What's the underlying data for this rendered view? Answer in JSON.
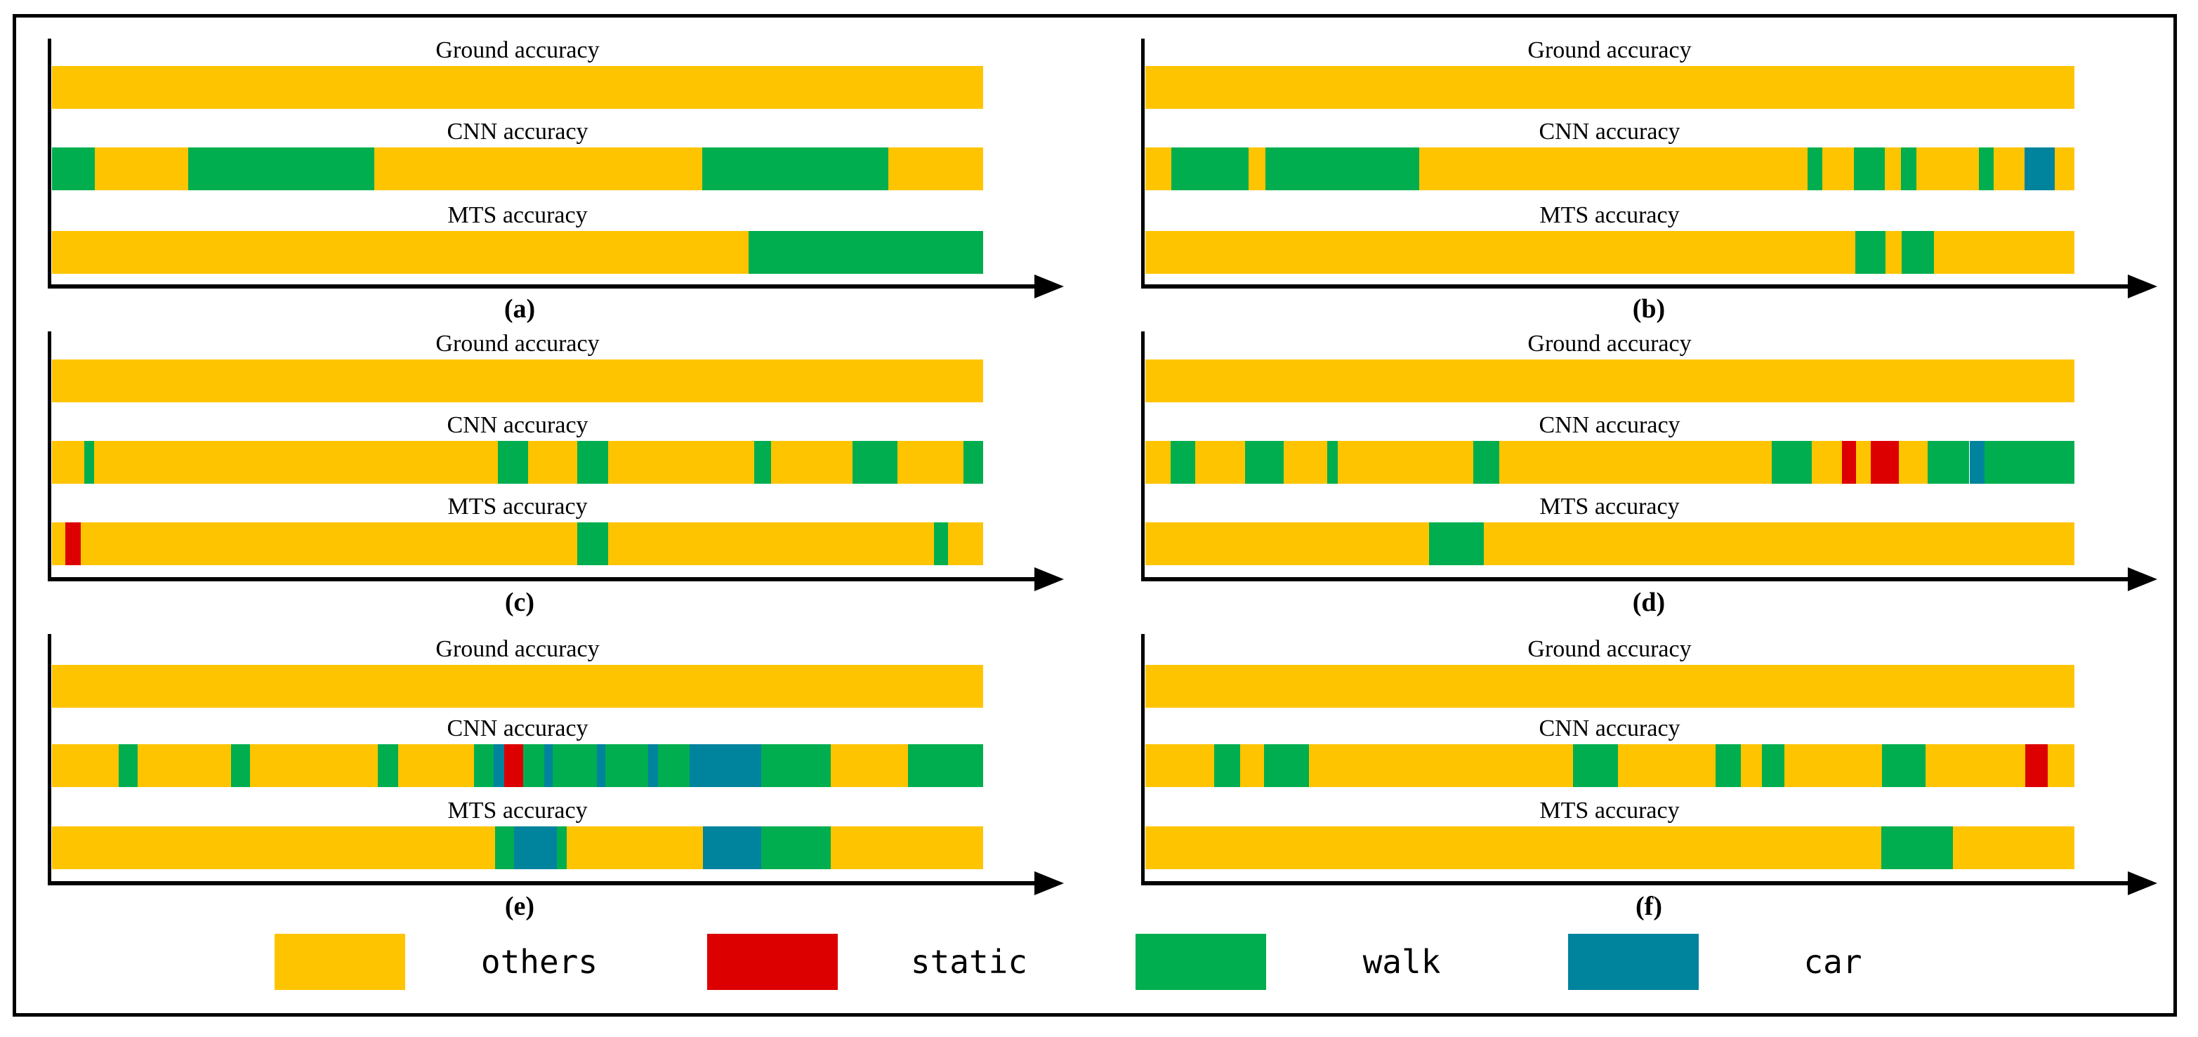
{
  "chart_data": {
    "type": "bar",
    "subtype": "segmented-timeline-comparison",
    "x_axis": {
      "min": 0,
      "max": 1,
      "unit": "fraction of sequence",
      "ticks": []
    },
    "row_titles": [
      "Ground accuracy",
      "CNN accuracy",
      "MTS accuracy"
    ],
    "legend": [
      {
        "label": "others",
        "color": "#FFC400"
      },
      {
        "label": "static",
        "color": "#DD0000"
      },
      {
        "label": "walk",
        "color": "#00AE4F"
      },
      {
        "label": "car",
        "color": "#00839D"
      }
    ],
    "panels": [
      {
        "label": "(a)",
        "rows": [
          {
            "title": "Ground accuracy",
            "segments": [
              [
                "others",
                0,
                1
              ]
            ]
          },
          {
            "title": "CNN accuracy",
            "segments": [
              [
                "walk",
                0,
                0.046
              ],
              [
                "others",
                0.046,
                0.146
              ],
              [
                "walk",
                0.146,
                0.346
              ],
              [
                "others",
                0.346,
                0.698
              ],
              [
                "walk",
                0.698,
                0.898
              ],
              [
                "others",
                0.898,
                1
              ]
            ]
          },
          {
            "title": "MTS accuracy",
            "segments": [
              [
                "others",
                0,
                0.748
              ],
              [
                "walk",
                0.748,
                1
              ]
            ]
          }
        ]
      },
      {
        "label": "(b)",
        "rows": [
          {
            "title": "Ground accuracy",
            "segments": [
              [
                "others",
                0,
                1
              ]
            ]
          },
          {
            "title": "CNN accuracy",
            "segments": [
              [
                "others",
                0,
                0.028
              ],
              [
                "walk",
                0.028,
                0.111
              ],
              [
                "others",
                0.111,
                0.129
              ],
              [
                "walk",
                0.129,
                0.295
              ],
              [
                "others",
                0.295,
                0.713
              ],
              [
                "walk",
                0.713,
                0.729
              ],
              [
                "others",
                0.729,
                0.763
              ],
              [
                "walk",
                0.763,
                0.796
              ],
              [
                "others",
                0.796,
                0.813
              ],
              [
                "walk",
                0.813,
                0.83
              ],
              [
                "others",
                0.83,
                0.897
              ],
              [
                "walk",
                0.897,
                0.913
              ],
              [
                "others",
                0.913,
                0.946
              ],
              [
                "car",
                0.946,
                0.979
              ],
              [
                "others",
                0.979,
                1
              ]
            ]
          },
          {
            "title": "MTS accuracy",
            "segments": [
              [
                "others",
                0,
                0.764
              ],
              [
                "walk",
                0.764,
                0.797
              ],
              [
                "others",
                0.797,
                0.814
              ],
              [
                "walk",
                0.814,
                0.849
              ],
              [
                "others",
                0.849,
                1
              ]
            ]
          }
        ]
      },
      {
        "label": "(c)",
        "rows": [
          {
            "title": "Ground accuracy",
            "segments": [
              [
                "others",
                0,
                1
              ]
            ]
          },
          {
            "title": "CNN accuracy",
            "segments": [
              [
                "others",
                0,
                0.035
              ],
              [
                "walk",
                0.035,
                0.045
              ],
              [
                "others",
                0.045,
                0.479
              ],
              [
                "walk",
                0.479,
                0.511
              ],
              [
                "others",
                0.511,
                0.564
              ],
              [
                "walk",
                0.564,
                0.597
              ],
              [
                "others",
                0.597,
                0.754
              ],
              [
                "walk",
                0.754,
                0.772
              ],
              [
                "others",
                0.772,
                0.86
              ],
              [
                "walk",
                0.86,
                0.908
              ],
              [
                "others",
                0.908,
                0.979
              ],
              [
                "walk",
                0.979,
                1
              ]
            ]
          },
          {
            "title": "MTS accuracy",
            "segments": [
              [
                "others",
                0,
                0.014
              ],
              [
                "static",
                0.014,
                0.031
              ],
              [
                "others",
                0.031,
                0.564
              ],
              [
                "walk",
                0.564,
                0.597
              ],
              [
                "others",
                0.597,
                0.947
              ],
              [
                "walk",
                0.947,
                0.962
              ],
              [
                "others",
                0.962,
                1
              ]
            ]
          }
        ]
      },
      {
        "label": "(d)",
        "rows": [
          {
            "title": "Ground accuracy",
            "segments": [
              [
                "others",
                0,
                1
              ]
            ]
          },
          {
            "title": "CNN accuracy",
            "segments": [
              [
                "others",
                0,
                0.027
              ],
              [
                "walk",
                0.027,
                0.054
              ],
              [
                "others",
                0.054,
                0.107
              ],
              [
                "walk",
                0.107,
                0.149
              ],
              [
                "others",
                0.149,
                0.196
              ],
              [
                "walk",
                0.196,
                0.207
              ],
              [
                "others",
                0.207,
                0.353
              ],
              [
                "walk",
                0.353,
                0.381
              ],
              [
                "others",
                0.381,
                0.674
              ],
              [
                "walk",
                0.674,
                0.717
              ],
              [
                "others",
                0.717,
                0.75
              ],
              [
                "static",
                0.75,
                0.765
              ],
              [
                "others",
                0.765,
                0.781
              ],
              [
                "static",
                0.781,
                0.811
              ],
              [
                "others",
                0.811,
                0.842
              ],
              [
                "walk",
                0.842,
                0.887
              ],
              [
                "car",
                0.887,
                0.903
              ],
              [
                "walk",
                0.903,
                1
              ]
            ]
          },
          {
            "title": "MTS accuracy",
            "segments": [
              [
                "others",
                0,
                0.305
              ],
              [
                "walk",
                0.305,
                0.364
              ],
              [
                "others",
                0.364,
                1
              ]
            ]
          }
        ]
      },
      {
        "label": "(e)",
        "rows": [
          {
            "title": "Ground accuracy",
            "segments": [
              [
                "others",
                0,
                1
              ]
            ]
          },
          {
            "title": "CNN accuracy",
            "segments": [
              [
                "others",
                0,
                0.072
              ],
              [
                "walk",
                0.072,
                0.092
              ],
              [
                "others",
                0.092,
                0.192
              ],
              [
                "walk",
                0.192,
                0.213
              ],
              [
                "others",
                0.213,
                0.35
              ],
              [
                "walk",
                0.35,
                0.372
              ],
              [
                "others",
                0.372,
                0.453
              ],
              [
                "walk",
                0.453,
                0.474
              ],
              [
                "car",
                0.474,
                0.486
              ],
              [
                "static",
                0.486,
                0.506
              ],
              [
                "walk",
                0.506,
                0.529
              ],
              [
                "car",
                0.529,
                0.538
              ],
              [
                "walk",
                0.538,
                0.585
              ],
              [
                "car",
                0.585,
                0.594
              ],
              [
                "walk",
                0.594,
                0.64
              ],
              [
                "car",
                0.64,
                0.651
              ],
              [
                "walk",
                0.651,
                0.685
              ],
              [
                "car",
                0.685,
                0.762
              ],
              [
                "walk",
                0.762,
                0.836
              ],
              [
                "others",
                0.836,
                0.919
              ],
              [
                "walk",
                0.919,
                1
              ]
            ]
          },
          {
            "title": "MTS accuracy",
            "segments": [
              [
                "others",
                0,
                0.476
              ],
              [
                "walk",
                0.476,
                0.496
              ],
              [
                "car",
                0.496,
                0.542
              ],
              [
                "walk",
                0.542,
                0.553
              ],
              [
                "others",
                0.553,
                0.699
              ],
              [
                "car",
                0.699,
                0.762
              ],
              [
                "walk",
                0.762,
                0.836
              ],
              [
                "others",
                0.836,
                1
              ]
            ]
          }
        ]
      },
      {
        "label": "(f)",
        "rows": [
          {
            "title": "Ground accuracy",
            "segments": [
              [
                "others",
                0,
                1
              ]
            ]
          },
          {
            "title": "CNN accuracy",
            "segments": [
              [
                "others",
                0,
                0.074
              ],
              [
                "walk",
                0.074,
                0.102
              ],
              [
                "others",
                0.102,
                0.128
              ],
              [
                "walk",
                0.128,
                0.176
              ],
              [
                "others",
                0.176,
                0.46
              ],
              [
                "walk",
                0.46,
                0.509
              ],
              [
                "others",
                0.509,
                0.614
              ],
              [
                "walk",
                0.614,
                0.641
              ],
              [
                "others",
                0.641,
                0.664
              ],
              [
                "walk",
                0.664,
                0.688
              ],
              [
                "others",
                0.688,
                0.793
              ],
              [
                "walk",
                0.793,
                0.84
              ],
              [
                "others",
                0.84,
                0.947
              ],
              [
                "static",
                0.947,
                0.971
              ],
              [
                "others",
                0.971,
                1
              ]
            ]
          },
          {
            "title": "MTS accuracy",
            "segments": [
              [
                "others",
                0,
                0.792
              ],
              [
                "walk",
                0.792,
                0.869
              ],
              [
                "others",
                0.869,
                1
              ]
            ]
          }
        ]
      }
    ]
  }
}
